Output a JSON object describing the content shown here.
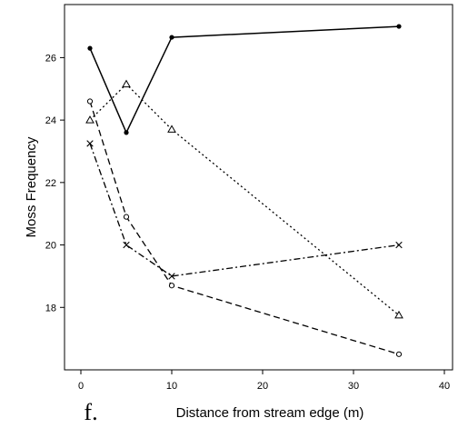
{
  "chart_data": {
    "type": "line",
    "title": "",
    "panel_label": "f.",
    "xlabel": "Distance from stream edge (m)",
    "ylabel": "Moss Frequency",
    "xlim": [
      0,
      40
    ],
    "ylim": [
      16,
      27.7
    ],
    "xticks": [
      "0",
      "10",
      "20",
      "30",
      "40"
    ],
    "yticks": [
      "18",
      "20",
      "22",
      "24",
      "26"
    ],
    "grid": false,
    "legend": "none",
    "series": [
      {
        "marker": "filled-circle",
        "line_style": "solid",
        "x": [
          1,
          5,
          10,
          35
        ],
        "y": [
          26.3,
          23.6,
          26.65,
          27.0
        ]
      },
      {
        "marker": "triangle",
        "line_style": "dotted",
        "x": [
          1,
          5,
          10,
          35
        ],
        "y": [
          24.0,
          25.15,
          23.7,
          17.75
        ]
      },
      {
        "marker": "open-circle",
        "line_style": "dashed",
        "x": [
          1,
          5,
          10,
          35
        ],
        "y": [
          24.6,
          20.9,
          18.7,
          16.5
        ]
      },
      {
        "marker": "cross",
        "line_style": "dash-dot",
        "x": [
          1,
          5,
          10,
          35
        ],
        "y": [
          23.25,
          20.0,
          19.0,
          20.0
        ]
      }
    ]
  }
}
